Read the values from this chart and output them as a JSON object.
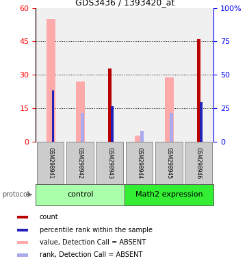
{
  "title": "GDS3436 / 1393420_at",
  "samples": [
    "GSM298941",
    "GSM298942",
    "GSM298943",
    "GSM298944",
    "GSM298945",
    "GSM298946"
  ],
  "ylim_left": [
    0,
    60
  ],
  "ylim_right": [
    0,
    100
  ],
  "yticks_left": [
    0,
    15,
    30,
    45,
    60
  ],
  "yticks_right": [
    0,
    25,
    50,
    75,
    100
  ],
  "yticklabels_right": [
    "0",
    "25",
    "50",
    "75",
    "100%"
  ],
  "color_darkred": "#bb0000",
  "color_pink": "#ffaaaa",
  "color_blue": "#2222bb",
  "color_lightblue": "#aaaaee",
  "count_values": [
    0,
    0,
    33,
    0,
    0,
    46
  ],
  "percentile_values": [
    23,
    0,
    16,
    0,
    0,
    18
  ],
  "pink_values": [
    55,
    27,
    0,
    3,
    29,
    0
  ],
  "lightblue_values": [
    0,
    13,
    0,
    5,
    13,
    0
  ],
  "group_ctrl_color": "#aaffaa",
  "group_math_color": "#33ee33",
  "legend_items": [
    {
      "color": "#bb0000",
      "label": "count"
    },
    {
      "color": "#2222bb",
      "label": "percentile rank within the sample"
    },
    {
      "color": "#ffaaaa",
      "label": "value, Detection Call = ABSENT"
    },
    {
      "color": "#aaaaee",
      "label": "rank, Detection Call = ABSENT"
    }
  ],
  "background_color": "#ffffff"
}
